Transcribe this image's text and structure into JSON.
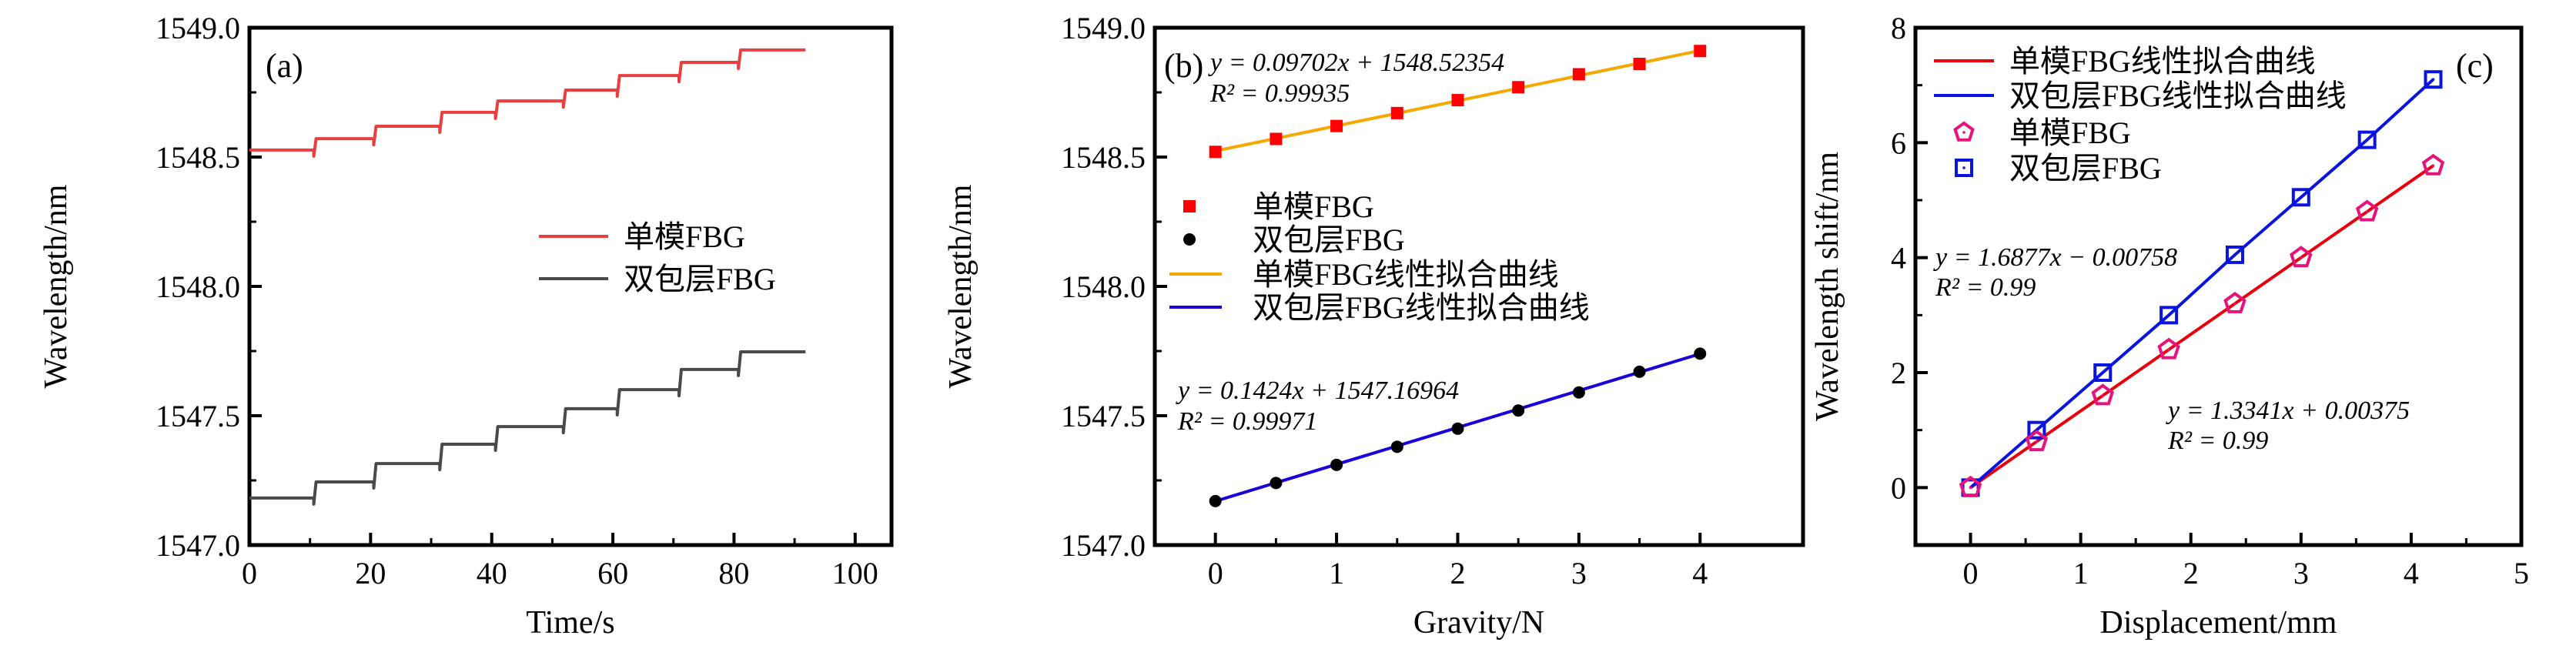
{
  "chart_data": [
    {
      "type": "line",
      "panel_label": "(a)",
      "xlabel": "Time/s",
      "ylabel": "Wavelength/nm",
      "xlim": [
        0,
        106
      ],
      "ylim": [
        1547.0,
        1549.0
      ],
      "xticks": [
        "0",
        "20",
        "40",
        "60",
        "80",
        "100"
      ],
      "xtick_values": [
        0,
        20,
        40,
        60,
        80,
        100
      ],
      "yticks": [
        "1547.0",
        "1547.5",
        "1548.0",
        "1548.5",
        "1549.0"
      ],
      "ytick_values": [
        1547.0,
        1547.5,
        1548.0,
        1548.5,
        1549.0
      ],
      "legend": "center-right",
      "step_times": [
        0,
        11,
        20.9,
        31.8,
        41,
        52.2,
        61.1,
        71.3,
        81.1,
        91.8
      ],
      "series": [
        {
          "name": "单模FBG",
          "color": "#e84040",
          "levels": [
            1548.527,
            1548.571,
            1548.619,
            1548.673,
            1548.717,
            1548.759,
            1548.815,
            1548.866,
            1548.914
          ]
        },
        {
          "name": "双包层FBG",
          "color": "#4a4a4a",
          "levels": [
            1547.182,
            1547.244,
            1547.315,
            1547.39,
            1547.458,
            1547.527,
            1547.601,
            1547.679,
            1547.747
          ]
        }
      ]
    },
    {
      "type": "scatter",
      "panel_label": "(b)",
      "xlabel": "Gravity/N",
      "ylabel": "Wavelength/nm",
      "xlim": [
        -0.5,
        4.85
      ],
      "ylim": [
        1547.0,
        1549.0
      ],
      "xticks": [
        "0",
        "1",
        "2",
        "3",
        "4"
      ],
      "xtick_values": [
        0,
        1,
        2,
        3,
        4
      ],
      "yticks": [
        "1547.0",
        "1547.5",
        "1548.0",
        "1548.5",
        "1549.0"
      ],
      "ytick_values": [
        1547.0,
        1547.5,
        1548.0,
        1548.5,
        1549.0
      ],
      "legend": "center-left",
      "x": [
        0,
        0.5,
        1,
        1.5,
        2,
        2.5,
        3,
        3.5,
        4
      ],
      "series": [
        {
          "name": "单模FBG",
          "marker": "square",
          "color": "#ff0000",
          "values": [
            1548.52,
            1548.57,
            1548.62,
            1548.67,
            1548.72,
            1548.77,
            1548.82,
            1548.86,
            1548.91
          ]
        },
        {
          "name": "双包层FBG",
          "marker": "circle",
          "color": "#000000",
          "values": [
            1547.17,
            1547.24,
            1547.31,
            1547.38,
            1547.45,
            1547.52,
            1547.59,
            1547.67,
            1547.74
          ]
        }
      ],
      "fits": [
        {
          "name": "单模FBG线性拟合曲线",
          "color": "#f5a800",
          "slope": 0.09702,
          "intercept": 1548.52354,
          "equation": "y = 0.09702x + 1548.52354",
          "r2": "R² = 0.99935"
        },
        {
          "name": "双包层FBG线性拟合曲线",
          "color": "#1a00d8",
          "slope": 0.1424,
          "intercept": 1547.16964,
          "equation": "y = 0.1424x + 1547.16964",
          "r2": "R² = 0.99971"
        }
      ]
    },
    {
      "type": "line",
      "panel_label": "(c)",
      "xlabel": "Displacement/mm",
      "ylabel": "Wavelength shift/nm",
      "xlim": [
        -0.5,
        5
      ],
      "ylim": [
        -1,
        8
      ],
      "xticks": [
        "0",
        "1",
        "2",
        "3",
        "4",
        "5"
      ],
      "xtick_values": [
        0,
        1,
        2,
        3,
        4,
        5
      ],
      "yticks": [
        "0",
        "2",
        "4",
        "6",
        "8"
      ],
      "ytick_values": [
        0,
        2,
        4,
        6,
        8
      ],
      "legend": "top-left",
      "x": [
        0,
        0.6,
        1.2,
        1.8,
        2.4,
        3.0,
        3.6,
        4.2
      ],
      "fit_names": [
        "单模FBG线性拟合曲线",
        "双包层FBG线性拟合曲线"
      ],
      "fit_colors": [
        "#e8000b",
        "#0a14e0"
      ],
      "series": [
        {
          "name": "单模FBG",
          "marker": "pentagon",
          "color": "#e8127c",
          "values": [
            0,
            0.8,
            1.6,
            2.4,
            3.2,
            4.0,
            4.8,
            5.6
          ]
        },
        {
          "name": "双包层FBG",
          "marker": "square-open",
          "color": "#0a14e0",
          "values": [
            0,
            1.0,
            2.0,
            3.0,
            4.05,
            5.05,
            6.05,
            7.1
          ]
        }
      ],
      "annotations": [
        {
          "equation": "y = 1.6877x − 0.00758",
          "r2": "R² = 0.99"
        },
        {
          "equation": "y = 1.3341x + 0.00375",
          "r2": "R² = 0.99"
        }
      ]
    }
  ]
}
